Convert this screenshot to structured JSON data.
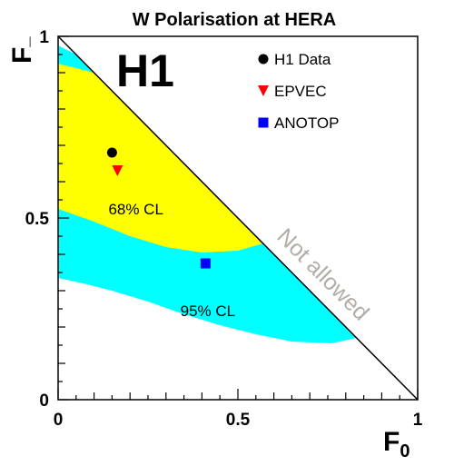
{
  "chart_data": {
    "type": "scatter",
    "title": "W Polarisation at HERA",
    "experiment": "H1",
    "xlabel": "F",
    "xlabel_sub": "0",
    "ylabel": "F",
    "ylabel_sub": "_",
    "xlim": [
      0,
      1
    ],
    "ylim": [
      0,
      1
    ],
    "x_ticks": [
      {
        "value": 0,
        "label": "0"
      },
      {
        "value": 0.5,
        "label": "0.5"
      },
      {
        "value": 1,
        "label": "1"
      }
    ],
    "y_ticks": [
      {
        "value": 0,
        "label": "0"
      },
      {
        "value": 0.5,
        "label": "0.5"
      },
      {
        "value": 1,
        "label": "1"
      }
    ],
    "series": [
      {
        "name": "H1 Data",
        "marker": "circle",
        "color": "#000000",
        "x": 0.15,
        "y": 0.68
      },
      {
        "name": "EPVEC",
        "marker": "triangle-down",
        "color": "#ff0000",
        "x": 0.165,
        "y": 0.63
      },
      {
        "name": "ANOTOP",
        "marker": "square",
        "color": "#0000ff",
        "x": 0.41,
        "y": 0.375
      }
    ],
    "regions": [
      {
        "label": "95% CL",
        "color": "#00ffff",
        "outer": [
          [
            0,
            0.975
          ],
          [
            0.05,
            0.95
          ],
          [
            0.15,
            0.85
          ],
          [
            0.25,
            0.75
          ],
          [
            0.35,
            0.65
          ],
          [
            0.45,
            0.55
          ],
          [
            0.55,
            0.45
          ],
          [
            0.65,
            0.35
          ],
          [
            0.75,
            0.25
          ],
          [
            0.83,
            0.17
          ]
        ],
        "inner": [
          [
            0.83,
            0.17
          ],
          [
            0.76,
            0.155
          ],
          [
            0.65,
            0.16
          ],
          [
            0.55,
            0.18
          ],
          [
            0.45,
            0.205
          ],
          [
            0.35,
            0.235
          ],
          [
            0.25,
            0.27
          ],
          [
            0.15,
            0.3
          ],
          [
            0.07,
            0.32
          ],
          [
            0,
            0.335
          ]
        ]
      },
      {
        "label": "68% CL",
        "color": "#ffff00",
        "outer": [
          [
            0,
            0.925
          ],
          [
            0.1,
            0.9
          ],
          [
            0.2,
            0.8
          ],
          [
            0.3,
            0.7
          ],
          [
            0.4,
            0.6
          ],
          [
            0.5,
            0.5
          ],
          [
            0.57,
            0.43
          ]
        ],
        "inner": [
          [
            0.57,
            0.43
          ],
          [
            0.5,
            0.41
          ],
          [
            0.4,
            0.405
          ],
          [
            0.3,
            0.42
          ],
          [
            0.2,
            0.45
          ],
          [
            0.1,
            0.49
          ],
          [
            0,
            0.525
          ]
        ]
      }
    ],
    "region_labels": [
      {
        "text": "68% CL",
        "x": 0.14,
        "y": 0.51
      },
      {
        "text": "95% CL",
        "x": 0.34,
        "y": 0.23
      }
    ],
    "forbidden_label": "Not allowed",
    "boundary": [
      [
        0,
        1
      ],
      [
        1,
        0
      ]
    ]
  }
}
